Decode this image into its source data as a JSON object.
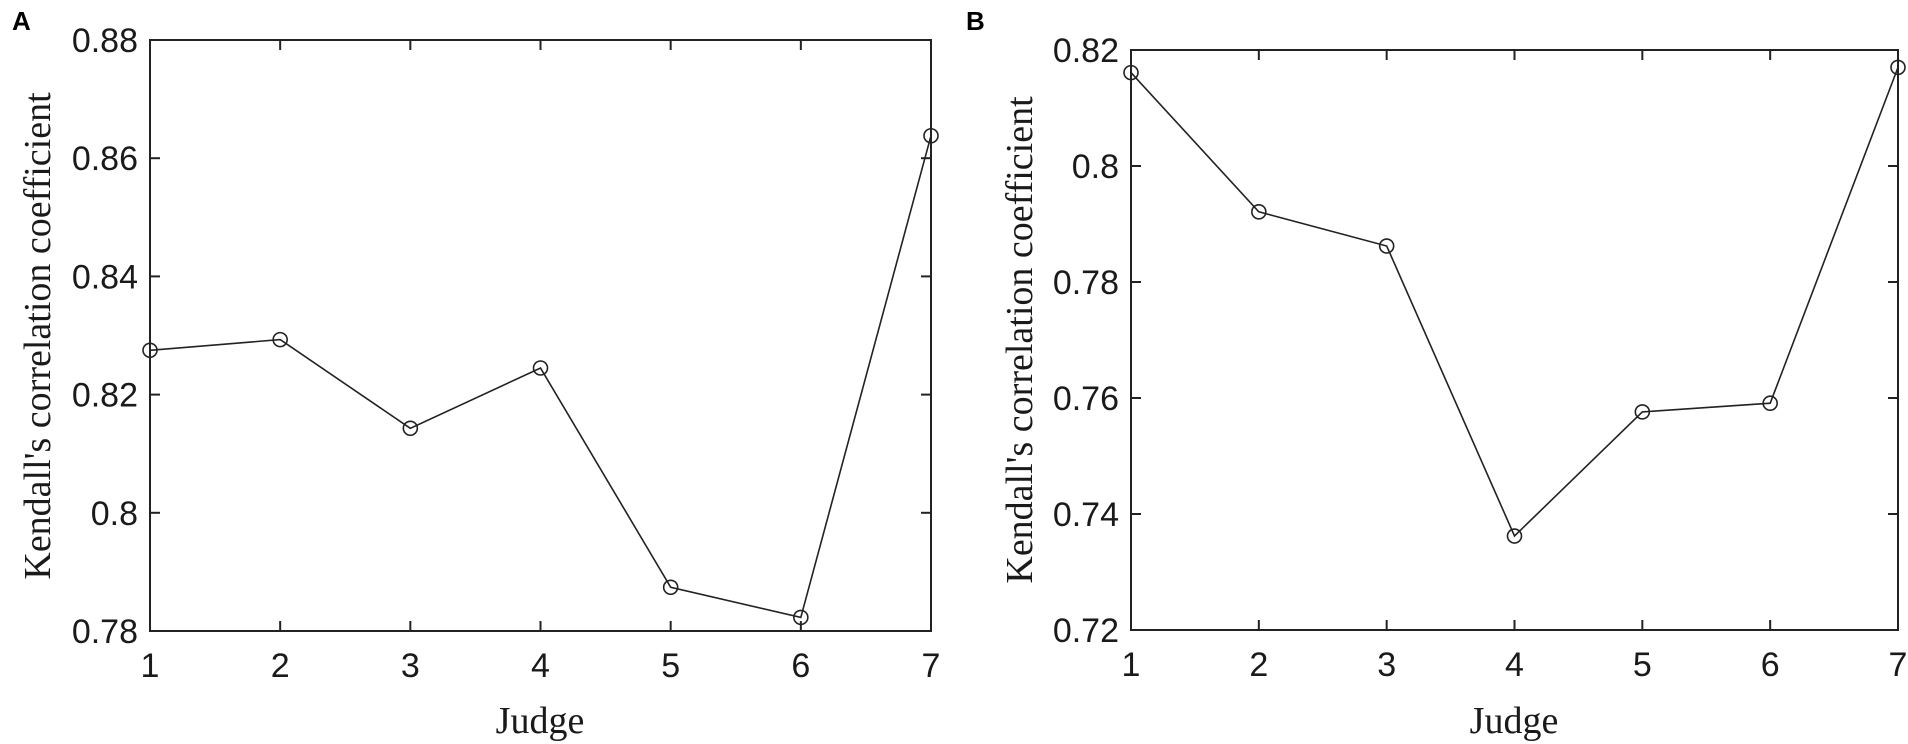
{
  "chart_data": [
    {
      "type": "line",
      "panel_label": "A",
      "xlabel": "Judge",
      "ylabel": "Kendall's correlation coefficient",
      "x": [
        1,
        2,
        3,
        4,
        5,
        6,
        7
      ],
      "xticks": [
        "1",
        "2",
        "3",
        "4",
        "5",
        "6",
        "7"
      ],
      "xlim": [
        1,
        7
      ],
      "ylim": [
        0.78,
        0.88
      ],
      "yticks": [
        "0.78",
        "0.8",
        "0.82",
        "0.84",
        "0.86",
        "0.88"
      ],
      "series": [
        {
          "marker": "circle",
          "values": [
            0.8275,
            0.8293,
            0.8143,
            0.8245,
            0.7874,
            0.7823,
            0.8638
          ]
        }
      ],
      "grid": false,
      "box": true
    },
    {
      "type": "line",
      "panel_label": "B",
      "xlabel": "Judge",
      "ylabel": "Kendall's correlation coefficient",
      "x": [
        1,
        2,
        3,
        4,
        5,
        6,
        7
      ],
      "xticks": [
        "1",
        "2",
        "3",
        "4",
        "5",
        "6",
        "7"
      ],
      "xlim": [
        1,
        7
      ],
      "ylim": [
        0.72,
        0.82
      ],
      "yticks": [
        "0.72",
        "0.74",
        "0.76",
        "0.78",
        "0.8",
        "0.82"
      ],
      "series": [
        {
          "marker": "circle",
          "values": [
            0.8161,
            0.7921,
            0.7862,
            0.7362,
            0.7576,
            0.7591,
            0.817
          ]
        }
      ],
      "grid": false,
      "box": true
    }
  ]
}
